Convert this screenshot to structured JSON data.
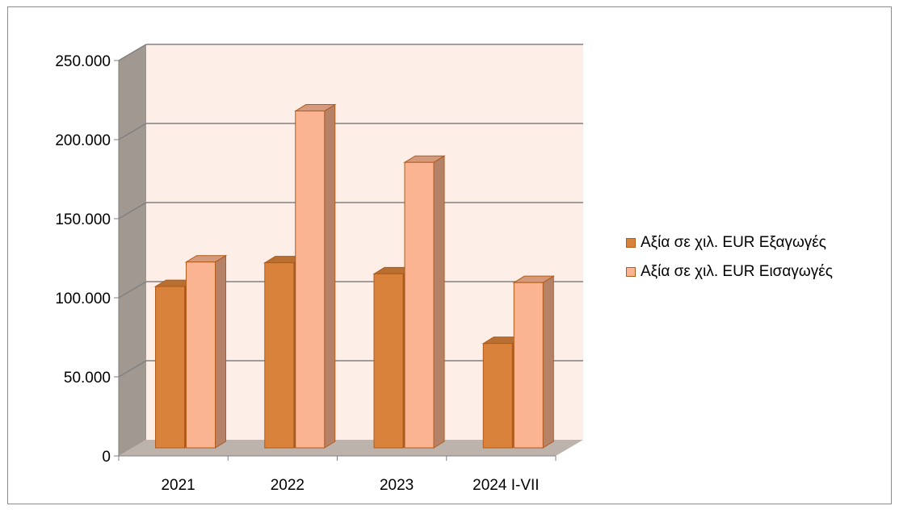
{
  "chart_data": {
    "type": "bar",
    "categories": [
      "2021",
      "2022",
      "2023",
      "2024 I-VII"
    ],
    "series": [
      {
        "name": "Αξία σε χιλ. EUR Εξαγωγές",
        "values": [
          102000,
          117000,
          110000,
          66000
        ],
        "color": "#d9823b"
      },
      {
        "name": "Αξία σε χιλ. EUR Εισαγωγές",
        "values": [
          117500,
          213000,
          180500,
          104500
        ],
        "color": "#fbb491"
      }
    ],
    "yticks": [
      "0",
      "50.000",
      "100.000",
      "150.000",
      "200.000",
      "250.000"
    ],
    "ylim": [
      0,
      250000
    ],
    "grid": true,
    "legend_position": "right",
    "three_d": true,
    "colors": {
      "back_wall": "#fdeee8",
      "side_wall": "#a29892",
      "floor": "#bdb3ad",
      "gridline": "#808080"
    }
  }
}
